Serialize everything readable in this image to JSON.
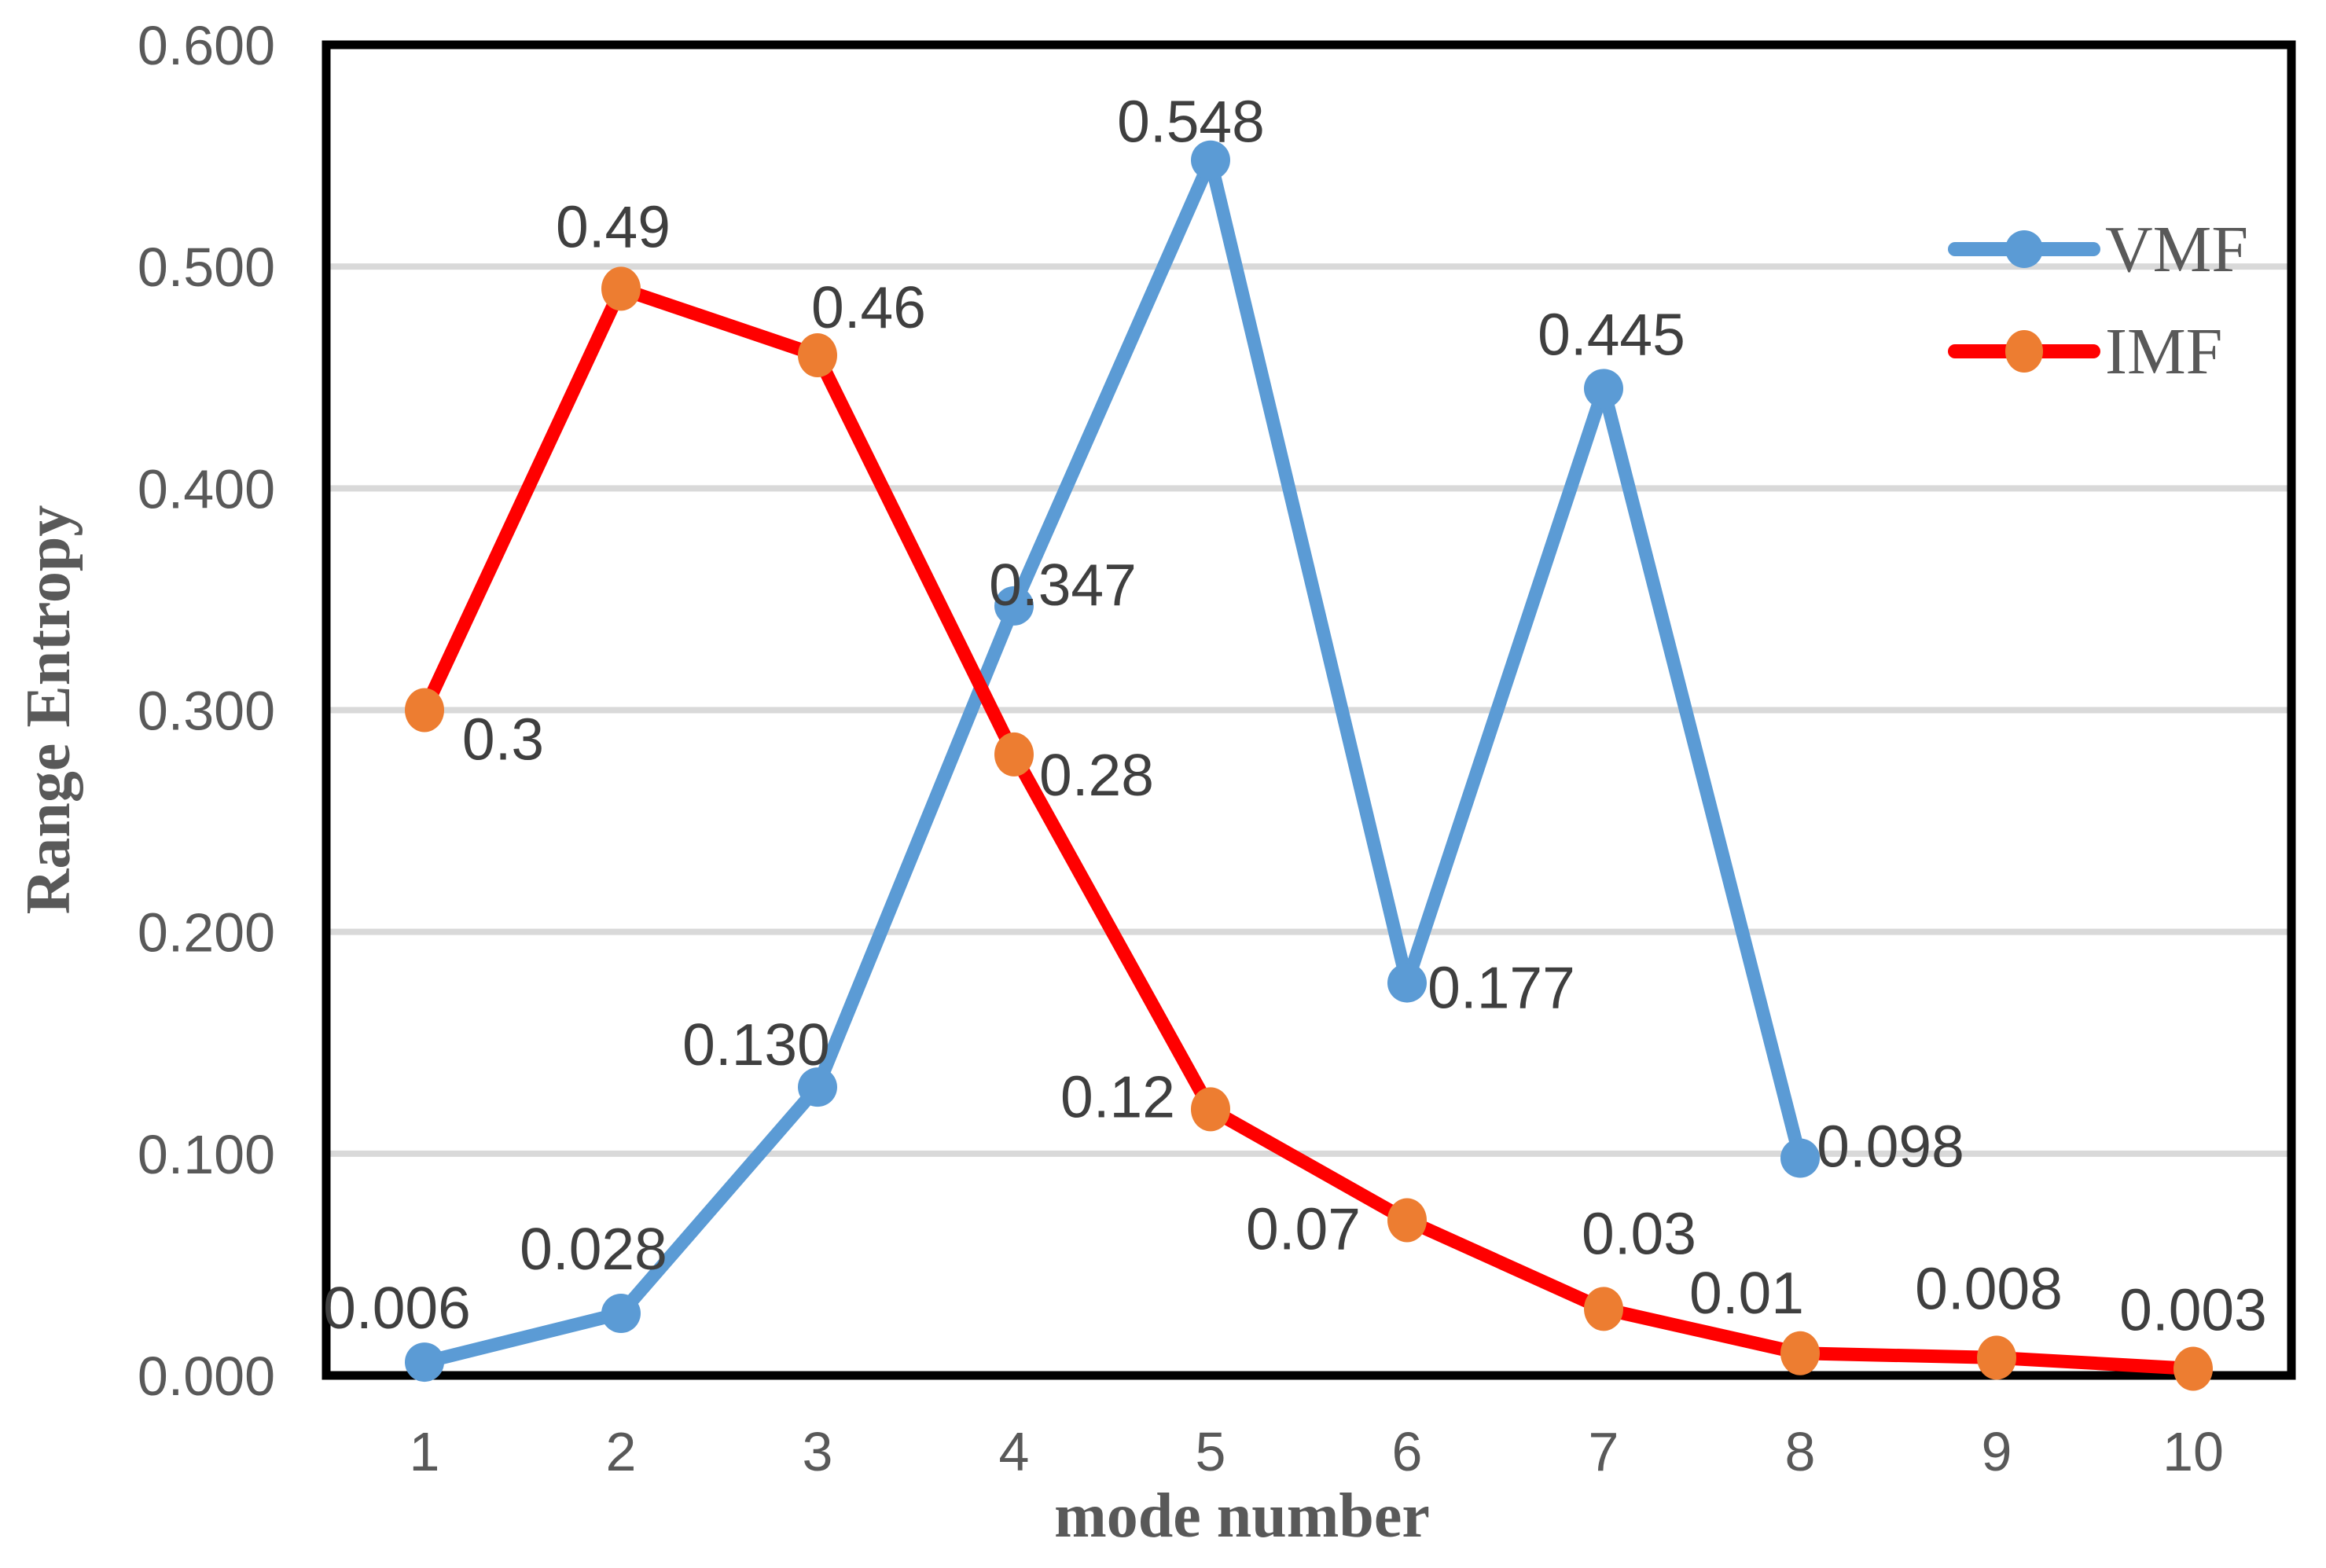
{
  "chart_data": {
    "type": "line",
    "title": "",
    "xlabel": "mode number",
    "ylabel": "Range Entropy",
    "ylim": [
      0.0,
      0.6
    ],
    "grid": "horizontal",
    "legend_position": "top-right-inside",
    "x_ticks": [
      1,
      2,
      3,
      4,
      5,
      6,
      7,
      8,
      9,
      10
    ],
    "x_tick_labels": [
      "1",
      "2",
      "3",
      "4",
      "5",
      "6",
      "7",
      "8",
      "9",
      "10"
    ],
    "y_ticks": [
      0.0,
      0.1,
      0.2,
      0.3,
      0.4,
      0.5,
      0.6
    ],
    "y_tick_labels": [
      "0.000",
      "0.100",
      "0.200",
      "0.300",
      "0.400",
      "0.500",
      "0.600"
    ],
    "series": [
      {
        "name": "VMF",
        "line_color": "#5B9BD5",
        "marker_color": "#5B9BD5",
        "marker": "circle",
        "x": [
          1,
          2,
          3,
          4,
          5,
          6,
          7,
          8
        ],
        "values": [
          0.006,
          0.028,
          0.13,
          0.347,
          0.548,
          0.177,
          0.445,
          0.098
        ],
        "labels": [
          "0.006",
          "0.028",
          "0.130",
          "0.347",
          "0.548",
          "0.177",
          "0.445",
          "0.098"
        ]
      },
      {
        "name": "IMF",
        "line_color": "#FF0000",
        "marker_color": "#ED7D31",
        "marker": "circle",
        "x": [
          1,
          2,
          3,
          4,
          5,
          6,
          7,
          8,
          9,
          10
        ],
        "values": [
          0.3,
          0.49,
          0.46,
          0.28,
          0.12,
          0.07,
          0.03,
          0.01,
          0.008,
          0.003
        ],
        "labels": [
          "0.3",
          "0.49",
          "0.46",
          "0.28",
          "0.12",
          "0.07",
          "0.03",
          "0.01",
          "0.008",
          "0.003"
        ]
      }
    ]
  },
  "colors": {
    "vmf_blue": "#5B9BD5",
    "imf_red": "#FF0000",
    "imf_marker_orange": "#ED7D31",
    "gridline_gray": "#d9d9d9",
    "frame_black": "#000000",
    "tick_text_gray": "#595959",
    "data_label_gray": "#3f3f3f"
  },
  "legend": {
    "items": [
      {
        "label": "VMF"
      },
      {
        "label": "IMF"
      }
    ]
  }
}
